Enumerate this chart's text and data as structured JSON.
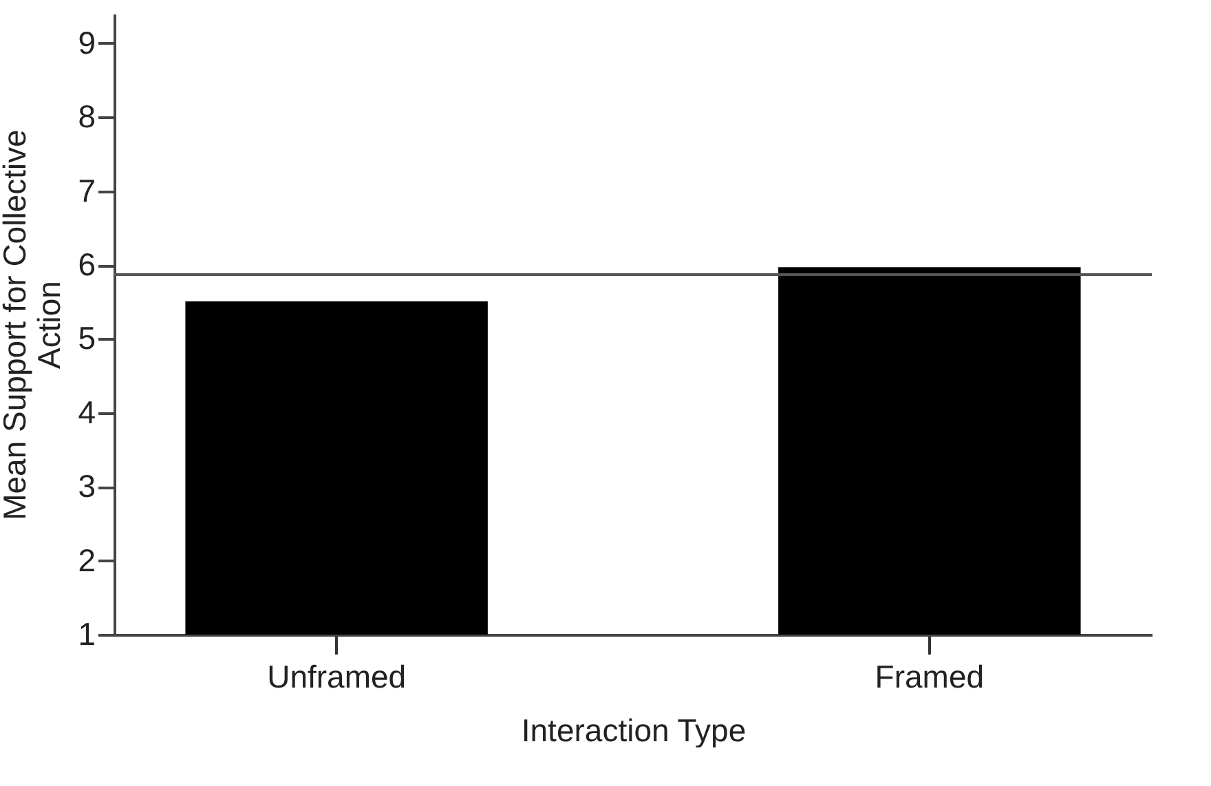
{
  "chart_data": {
    "type": "bar",
    "xlabel": "Interaction Type",
    "ylabel": "Mean Support for Collective Action",
    "categories": [
      "Unframed",
      "Framed"
    ],
    "values": [
      5.51,
      5.97
    ],
    "color": "#000000",
    "ylim": [
      1,
      9.4
    ],
    "yticks": [
      1,
      2,
      3,
      4,
      5,
      6,
      7,
      8,
      9
    ],
    "grid": false,
    "ref_lines": [
      {
        "axis": "y",
        "value": 5.87,
        "color": "#555555"
      }
    ]
  }
}
